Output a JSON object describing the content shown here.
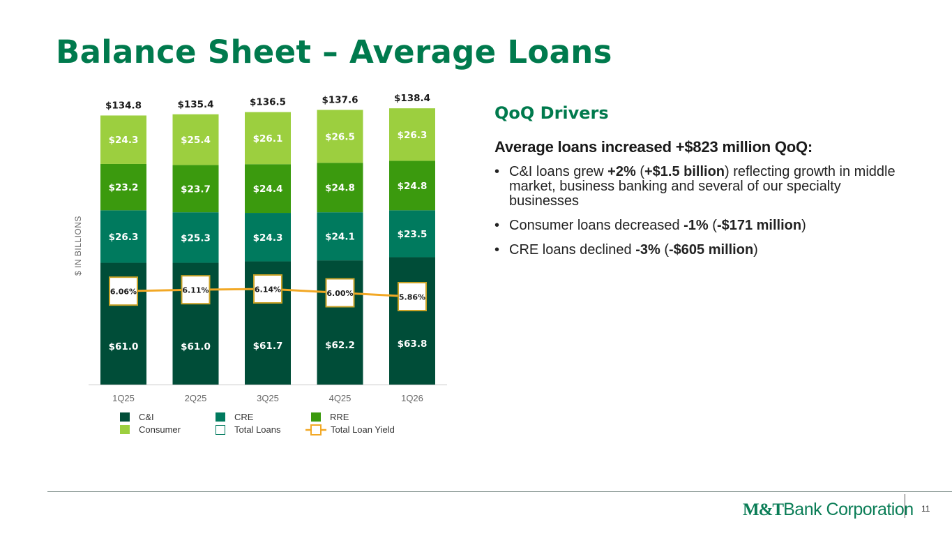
{
  "title": "Balance Sheet – Average Loans",
  "drivers": {
    "heading": "QoQ Drivers",
    "subheading": "Average loans increased +$823 million QoQ:",
    "bullets": [
      [
        {
          "t": "C&I loans grew "
        },
        {
          "t": "+2%",
          "b": true
        },
        {
          "t": " ("
        },
        {
          "t": "+$1.5 billion",
          "b": true
        },
        {
          "t": ") reflecting growth in middle market, business banking and several of our specialty businesses"
        }
      ],
      [
        {
          "t": "Consumer loans decreased "
        },
        {
          "t": "-1%",
          "b": true
        },
        {
          "t": " ("
        },
        {
          "t": "-$171 million",
          "b": true
        },
        {
          "t": ")"
        }
      ],
      [
        {
          "t": "CRE loans declined "
        },
        {
          "t": "-3%",
          "b": true
        },
        {
          "t": " ("
        },
        {
          "t": "-$605 million",
          "b": true
        },
        {
          "t": ")"
        }
      ]
    ]
  },
  "chart_data": {
    "type": "bar",
    "stacked": true,
    "categories": [
      "1Q25",
      "2Q25",
      "3Q25",
      "4Q25",
      "1Q26"
    ],
    "ylabel": "$ IN BILLIONS",
    "series": [
      {
        "name": "C&I",
        "color": "#004d38",
        "values": [
          61.0,
          61.0,
          61.7,
          62.2,
          63.8
        ],
        "labels": [
          "$61.0",
          "$61.0",
          "$61.7",
          "$62.2",
          "$63.8"
        ]
      },
      {
        "name": "CRE",
        "color": "#007a5e",
        "values": [
          26.3,
          25.3,
          24.3,
          24.1,
          23.5
        ],
        "labels": [
          "$26.3",
          "$25.3",
          "$24.3",
          "$24.1",
          "$23.5"
        ]
      },
      {
        "name": "RRE",
        "color": "#3b9a0e",
        "values": [
          23.2,
          23.7,
          24.4,
          24.8,
          24.8
        ],
        "labels": [
          "$23.2",
          "$23.7",
          "$24.4",
          "$24.8",
          "$24.8"
        ]
      },
      {
        "name": "Consumer",
        "color": "#9ccf3f",
        "values": [
          24.3,
          25.4,
          26.1,
          26.5,
          26.3
        ],
        "labels": [
          "$24.3",
          "$25.4",
          "$26.1",
          "$26.5",
          "$26.3"
        ]
      }
    ],
    "totals": {
      "name": "Total Loans",
      "values": [
        134.8,
        135.4,
        136.5,
        137.6,
        138.4
      ],
      "labels": [
        "$134.8",
        "$135.4",
        "$136.5",
        "$137.6",
        "$138.4"
      ]
    },
    "line": {
      "name": "Total Loan Yield",
      "color": "#f2a825",
      "values": [
        6.06,
        6.11,
        6.14,
        6.0,
        5.86
      ],
      "labels": [
        "6.06%",
        "6.11%",
        "6.14%",
        "6.00%",
        "5.86%"
      ]
    },
    "legend": [
      {
        "name": "C&I",
        "kind": "swatch",
        "color": "#004d38"
      },
      {
        "name": "CRE",
        "kind": "swatch",
        "color": "#007a5e"
      },
      {
        "name": "RRE",
        "kind": "swatch",
        "color": "#3b9a0e"
      },
      {
        "name": "Consumer",
        "kind": "swatch",
        "color": "#9ccf3f"
      },
      {
        "name": "Total Loans",
        "kind": "outline",
        "color": "#007a5e"
      },
      {
        "name": "Total Loan Yield",
        "kind": "line",
        "color": "#f2a825"
      }
    ],
    "legend_position": "bottom"
  },
  "footer": {
    "logo_mark": "M&T",
    "logo_text": "Bank Corporation",
    "page_number": "11"
  }
}
